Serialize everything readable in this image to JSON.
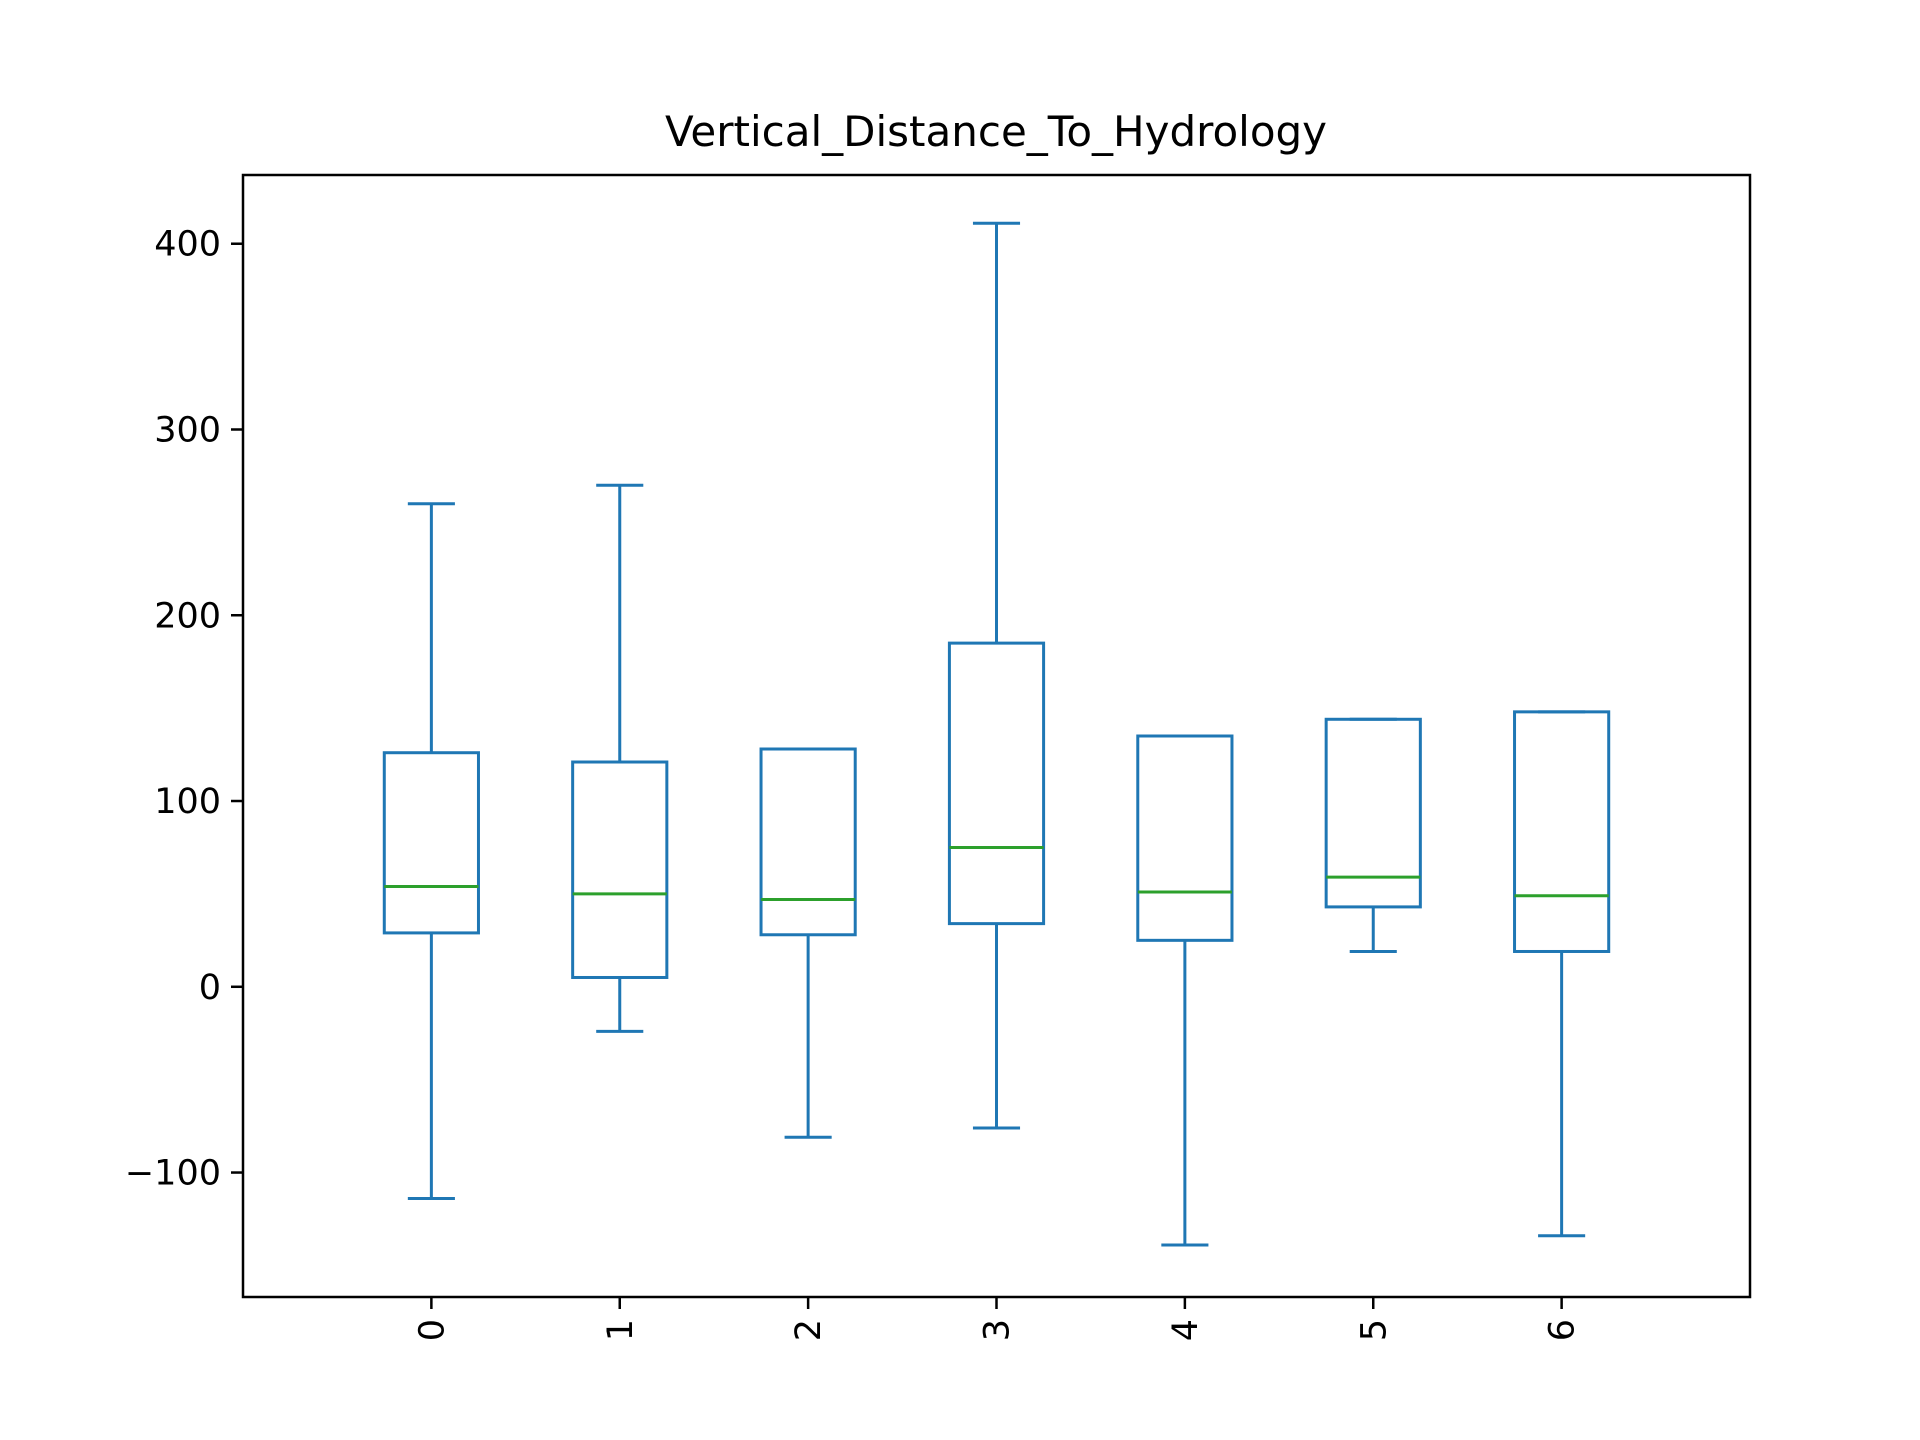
{
  "chart_data": {
    "type": "box",
    "title": "Vertical_Distance_To_Hydrology",
    "xlabel": "",
    "ylabel": "",
    "categories": [
      "0",
      "1",
      "2",
      "3",
      "4",
      "5",
      "6"
    ],
    "boxes": [
      {
        "whisker_low": -114,
        "q1": 29,
        "median": 54,
        "q3": 126,
        "whisker_high": 260
      },
      {
        "whisker_low": -24,
        "q1": 5,
        "median": 50,
        "q3": 121,
        "whisker_high": 270
      },
      {
        "whisker_low": -81,
        "q1": 28,
        "median": 47,
        "q3": 128,
        "whisker_high": 128
      },
      {
        "whisker_low": -76,
        "q1": 34,
        "median": 75,
        "q3": 185,
        "whisker_high": 411
      },
      {
        "whisker_low": -139,
        "q1": 25,
        "median": 51,
        "q3": 135,
        "whisker_high": 135
      },
      {
        "whisker_low": 19,
        "q1": 43,
        "median": 59,
        "q3": 144,
        "whisker_high": 144
      },
      {
        "whisker_low": -134,
        "q1": 19,
        "median": 49,
        "q3": 148,
        "whisker_high": 148
      }
    ],
    "yticks": [
      -100,
      0,
      100,
      200,
      300,
      400
    ],
    "ylim": [
      -167,
      437
    ],
    "grid": false,
    "colors": {
      "box": "#1f77b4",
      "median": "#2ca02c",
      "axes": "#000000"
    }
  }
}
